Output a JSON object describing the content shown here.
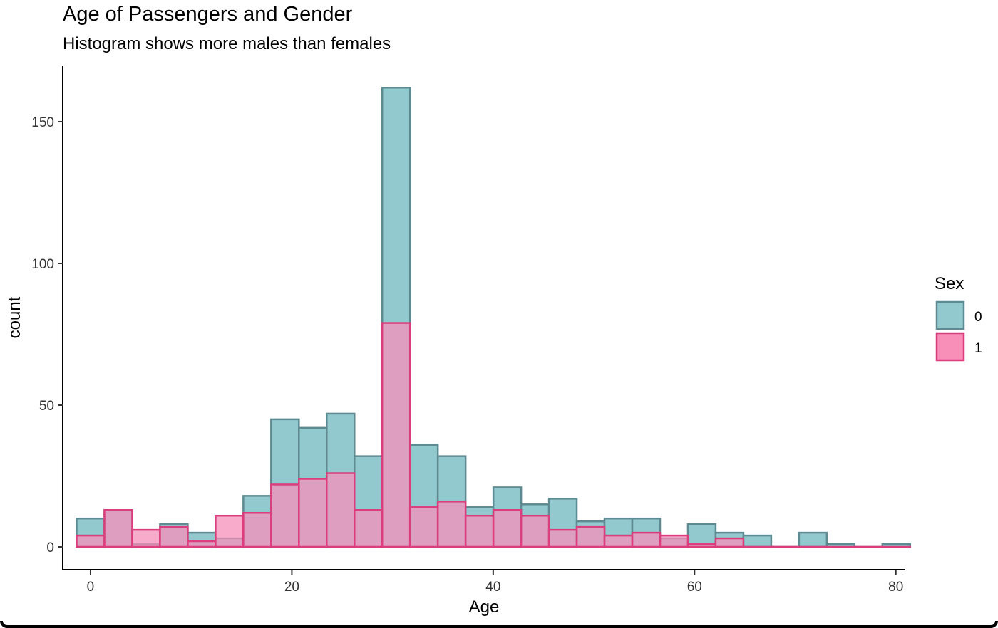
{
  "chart_data": {
    "type": "bar",
    "title": "Age of Passengers and Gender",
    "subtitle": "Histogram shows more males than females",
    "xlabel": "Age",
    "ylabel": "count",
    "xlim": [
      -2.76,
      80.94
    ],
    "ylim": [
      0,
      162
    ],
    "xticks": [
      0,
      20,
      40,
      60,
      80
    ],
    "yticks": [
      0,
      50,
      100,
      150
    ],
    "grid": false,
    "legend": {
      "title": "Sex",
      "position": "right"
    },
    "bin_edges": [
      -1.38,
      1.38,
      4.14,
      6.9,
      9.66,
      12.42,
      15.18,
      17.94,
      20.7,
      23.46,
      26.22,
      28.98,
      31.74,
      34.5,
      37.26,
      40.02,
      42.78,
      45.54,
      48.3,
      51.06,
      53.82,
      56.58,
      59.34,
      62.1,
      64.86,
      67.62,
      70.38,
      73.14,
      75.9,
      78.66,
      81.42
    ],
    "series": [
      {
        "name": "0",
        "color": "#92C9CF",
        "stroke": "#5E8B91",
        "values": [
          10,
          13,
          1,
          8,
          5,
          3,
          18,
          45,
          42,
          47,
          32,
          162,
          36,
          32,
          14,
          21,
          15,
          17,
          9,
          10,
          10,
          3,
          8,
          5,
          4,
          0,
          5,
          1,
          0,
          1
        ]
      },
      {
        "name": "1",
        "color": "#F78FB9",
        "stroke": "#DB3E7C",
        "values": [
          4,
          13,
          6,
          7,
          2,
          11,
          12,
          22,
          24,
          26,
          13,
          79,
          14,
          16,
          11,
          13,
          11,
          6,
          7,
          4,
          5,
          4,
          1,
          3,
          0,
          0,
          0,
          0,
          0,
          0
        ]
      }
    ]
  }
}
